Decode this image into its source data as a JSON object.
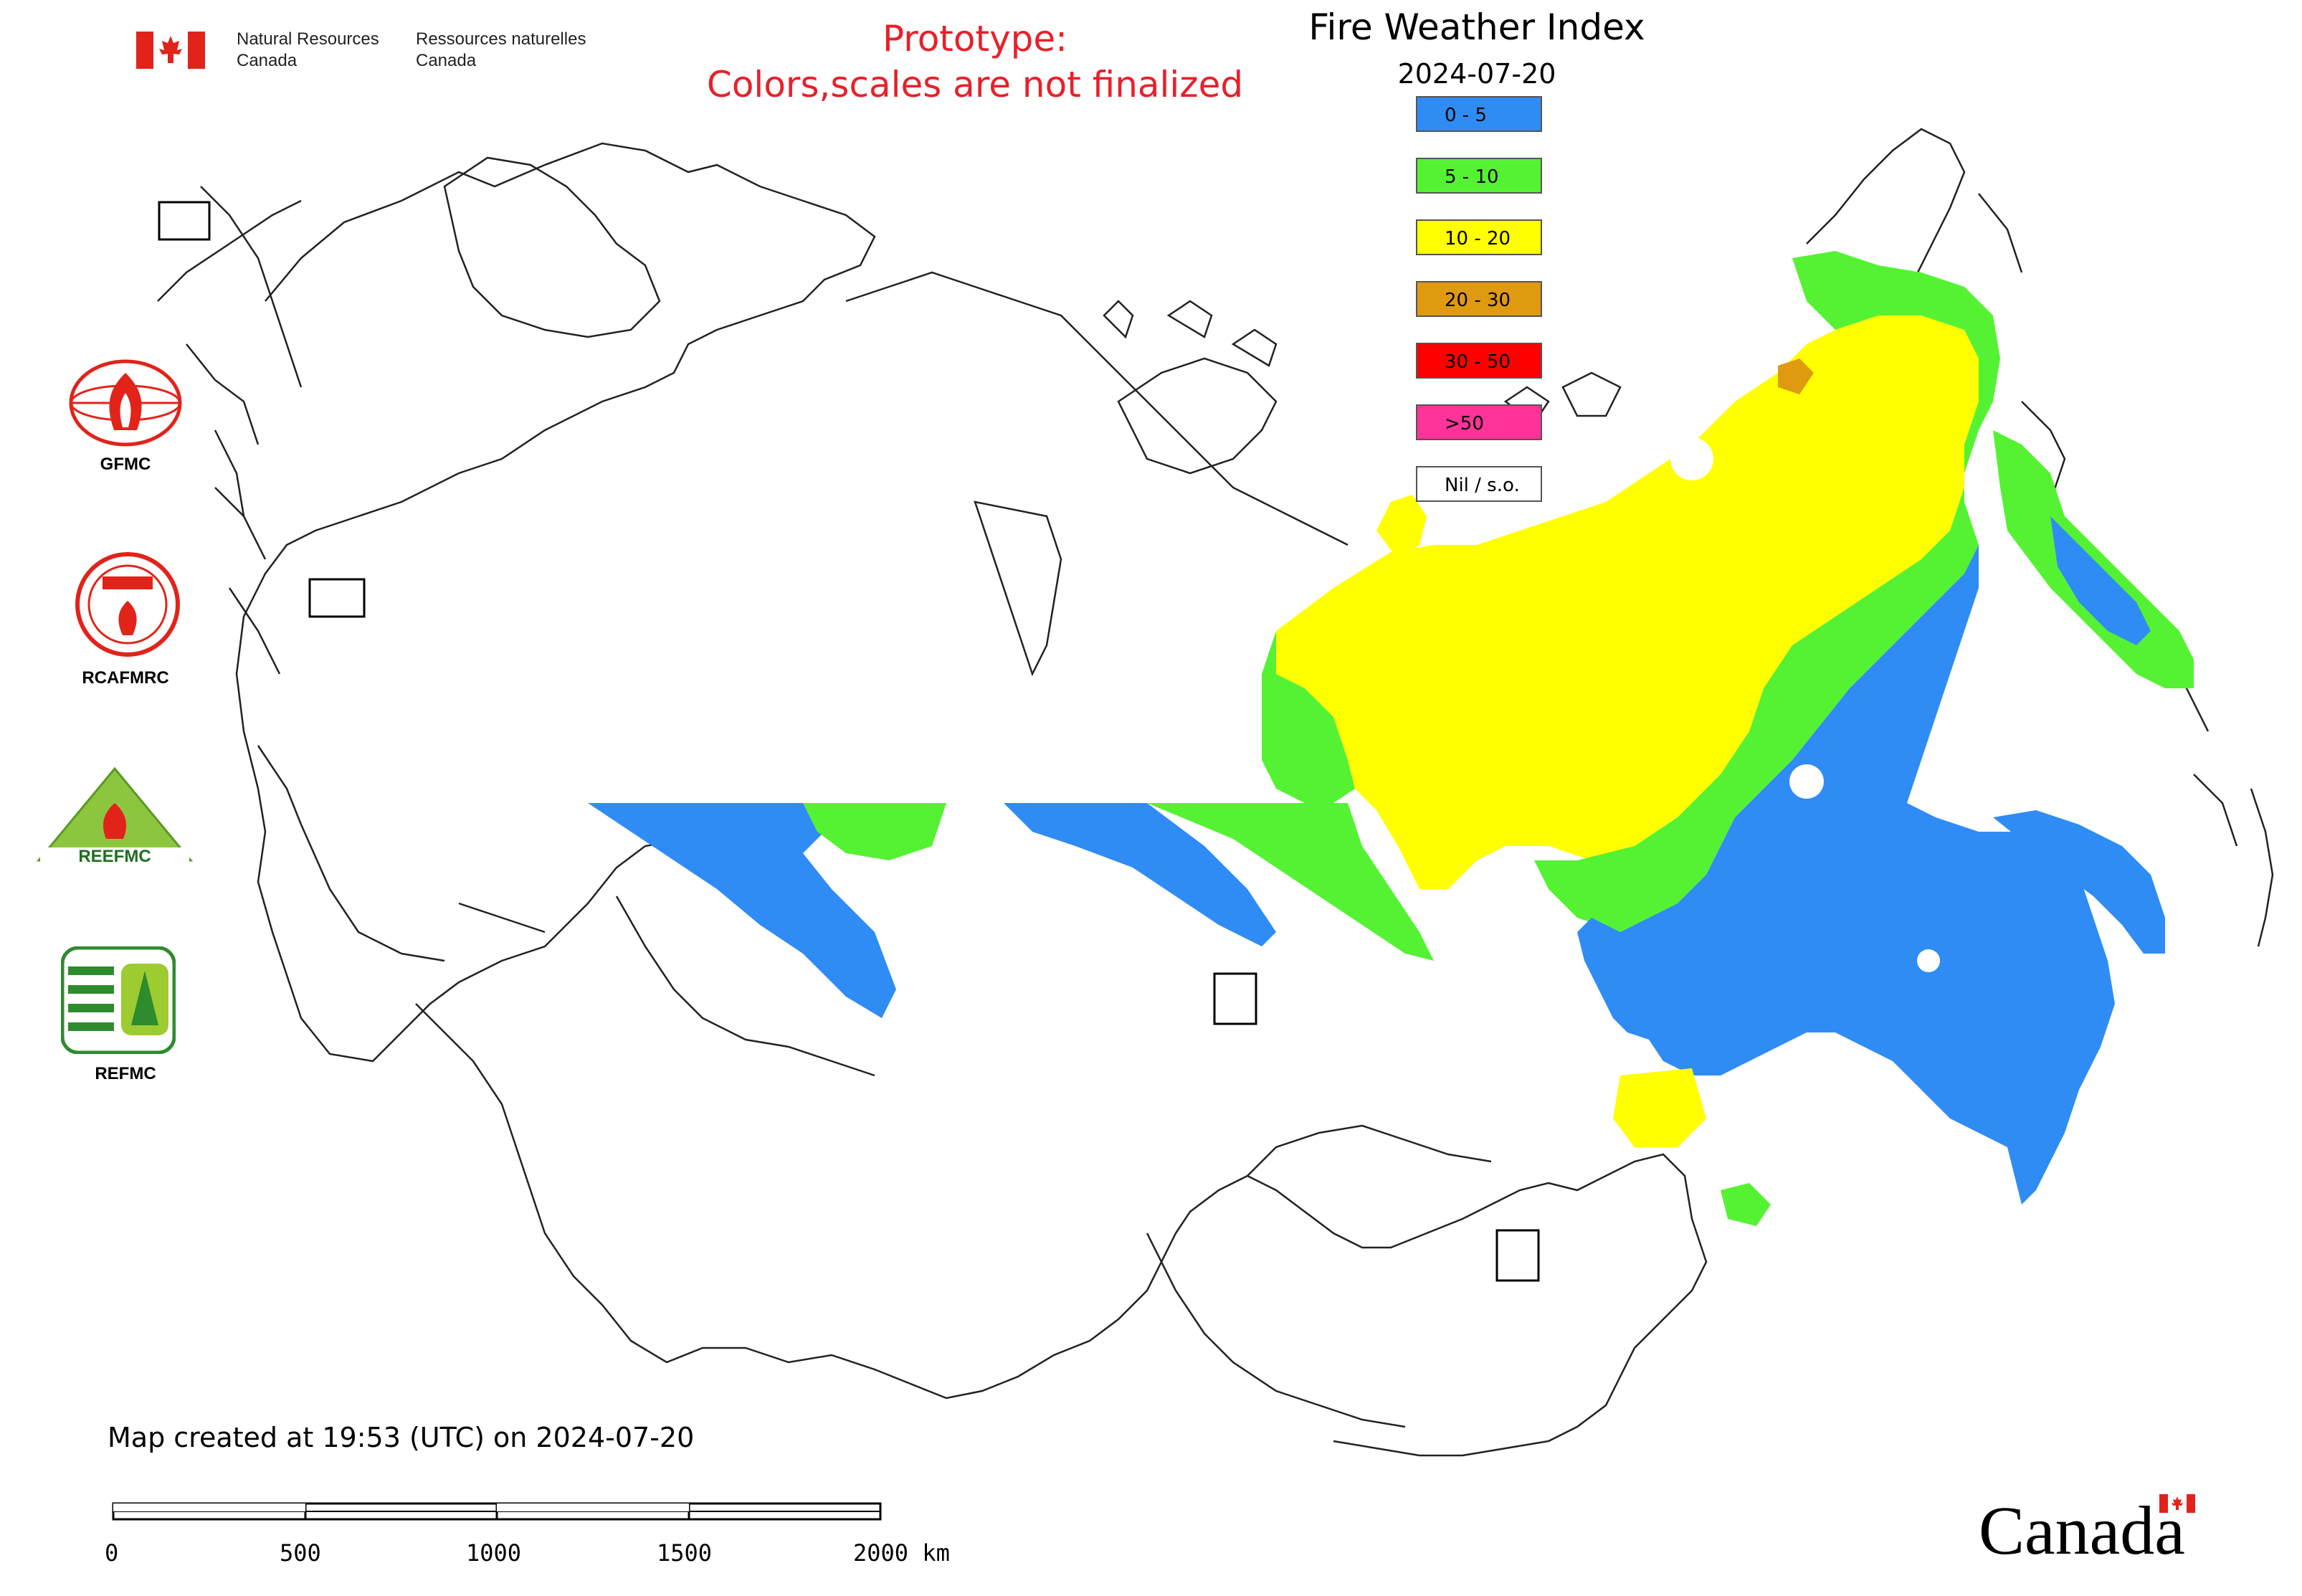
{
  "header": {
    "dept_en_line1": "Natural Resources",
    "dept_en_line2": "Canada",
    "dept_fr_line1": "Ressources naturelles",
    "dept_fr_line2": "Canada",
    "prototype_line1": "Prototype:",
    "prototype_line2": "Colors,scales are not finalized"
  },
  "map": {
    "title": "Fire Weather Index",
    "date": "2024-07-20"
  },
  "legend": [
    {
      "label": "0 - 5",
      "color": "#2f8cf4"
    },
    {
      "label": "5 - 10",
      "color": "#55f234"
    },
    {
      "label": "10 - 20",
      "color": "#ffff00"
    },
    {
      "label": "20 - 30",
      "color": "#e09a10"
    },
    {
      "label": "30 - 50",
      "color": "#ff0000"
    },
    {
      "label": ">50",
      "color": "#ff3399"
    },
    {
      "label": "Nil / s.o.",
      "color": "#ffffff"
    }
  ],
  "logos": [
    {
      "icon": "gfmc-logo",
      "label": "GFMC"
    },
    {
      "icon": "rcafmrc-logo",
      "label": "RCAFMRC"
    },
    {
      "icon": "reefmc-logo",
      "label": ""
    },
    {
      "icon": "refmc-logo",
      "label": "REFMC"
    }
  ],
  "footer": {
    "created": "Map created at 19:53 (UTC) on 2024-07-20",
    "scale_labels": [
      "0",
      "500",
      "1000",
      "1500",
      "2000 km"
    ],
    "wordmark": "Canada"
  },
  "colors": {
    "prototype_red": "#e8202a",
    "flag_red": "#e2231a"
  }
}
